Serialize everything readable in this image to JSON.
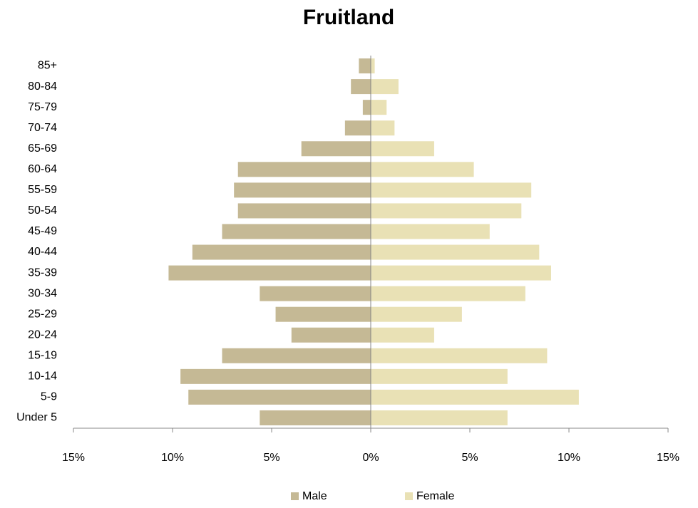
{
  "chart_data": {
    "type": "bar",
    "orientation": "horizontal",
    "title": "Fruitland",
    "categories": [
      "Under 5",
      "5-9",
      "10-14",
      "15-19",
      "20-24",
      "25-29",
      "30-34",
      "35-39",
      "40-44",
      "45-49",
      "50-54",
      "55-59",
      "60-64",
      "65-69",
      "70-74",
      "75-79",
      "80-84",
      "85+"
    ],
    "series": [
      {
        "name": "Male",
        "color": "#c5b995",
        "values": [
          -5.6,
          -9.2,
          -9.6,
          -7.5,
          -4.0,
          -4.8,
          -5.6,
          -10.2,
          -9.0,
          -7.5,
          -6.7,
          -6.9,
          -6.7,
          -3.5,
          -1.3,
          -0.4,
          -1.0,
          -0.6
        ]
      },
      {
        "name": "Female",
        "color": "#e9e1b5",
        "values": [
          6.9,
          10.5,
          6.9,
          8.9,
          3.2,
          4.6,
          7.8,
          9.1,
          8.5,
          6.0,
          7.6,
          8.1,
          5.2,
          3.2,
          1.2,
          0.8,
          1.4,
          0.2
        ]
      }
    ],
    "xlim": [
      -15,
      15
    ],
    "xticks": [
      {
        "value": -15,
        "label": "15%"
      },
      {
        "value": -10,
        "label": "10%"
      },
      {
        "value": -5,
        "label": "5%"
      },
      {
        "value": 0,
        "label": "0%"
      },
      {
        "value": 5,
        "label": "5%"
      },
      {
        "value": 10,
        "label": "10%"
      },
      {
        "value": 15,
        "label": "15%"
      }
    ],
    "legend": "bottom"
  }
}
